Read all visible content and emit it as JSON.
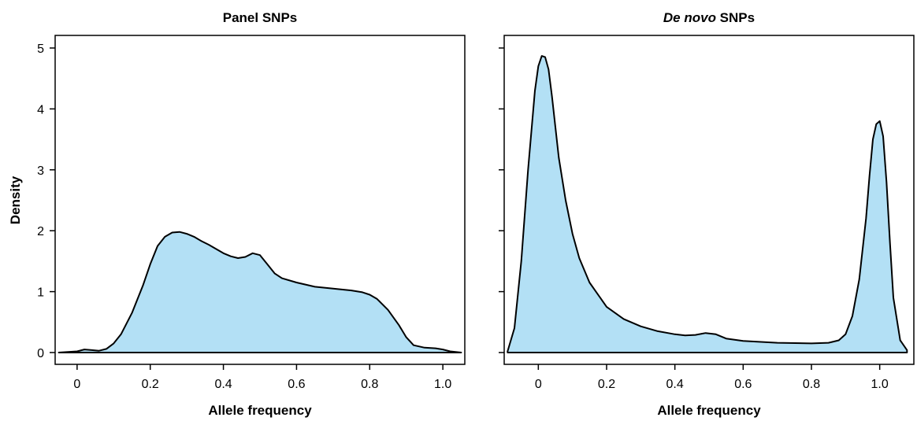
{
  "colors": {
    "fill": "#b3e0f5",
    "stroke": "#000000"
  },
  "chart_data": [
    {
      "type": "area",
      "title": "Panel SNPs",
      "xlabel": "Allele frequency",
      "ylabel": "Density",
      "xlim": [
        -0.06,
        1.06
      ],
      "ylim": [
        0,
        5.2
      ],
      "xticks": [
        0,
        0.2,
        0.4,
        0.6,
        0.8,
        1.0
      ],
      "xtick_labels": [
        "0",
        "0.2",
        "0.4",
        "0.6",
        "0.8",
        "1.0"
      ],
      "yticks": [
        0,
        1,
        2,
        3,
        4,
        5
      ],
      "ytick_labels": [
        "0",
        "1",
        "2",
        "3",
        "4",
        "5"
      ],
      "show_ytick_labels": true,
      "grid": false,
      "series": [
        {
          "x": [
            -0.05,
            0.0,
            0.02,
            0.04,
            0.06,
            0.08,
            0.1,
            0.12,
            0.15,
            0.18,
            0.2,
            0.22,
            0.24,
            0.26,
            0.28,
            0.3,
            0.32,
            0.34,
            0.36,
            0.38,
            0.4,
            0.42,
            0.44,
            0.46,
            0.48,
            0.5,
            0.52,
            0.54,
            0.56,
            0.6,
            0.65,
            0.7,
            0.75,
            0.78,
            0.8,
            0.82,
            0.85,
            0.88,
            0.9,
            0.92,
            0.95,
            0.98,
            1.0,
            1.02,
            1.05
          ],
          "y": [
            0.0,
            0.02,
            0.05,
            0.04,
            0.03,
            0.06,
            0.15,
            0.3,
            0.65,
            1.1,
            1.45,
            1.75,
            1.9,
            1.97,
            1.98,
            1.95,
            1.9,
            1.83,
            1.77,
            1.7,
            1.63,
            1.58,
            1.55,
            1.57,
            1.63,
            1.6,
            1.45,
            1.3,
            1.22,
            1.15,
            1.08,
            1.05,
            1.02,
            0.99,
            0.95,
            0.88,
            0.7,
            0.45,
            0.25,
            0.12,
            0.08,
            0.07,
            0.05,
            0.02,
            0.0
          ]
        }
      ]
    },
    {
      "type": "area",
      "title": "De novo SNPs",
      "title_italic": "De novo",
      "title_rest": " SNPs",
      "xlabel": "Allele frequency",
      "ylabel": "",
      "xlim": [
        -0.1,
        1.1
      ],
      "ylim": [
        0,
        5.2
      ],
      "xticks": [
        0,
        0.2,
        0.4,
        0.6,
        0.8,
        1.0
      ],
      "xtick_labels": [
        "0",
        "0.2",
        "0.4",
        "0.6",
        "0.8",
        "1.0"
      ],
      "yticks": [
        0,
        1,
        2,
        3,
        4,
        5
      ],
      "ytick_labels": [
        "0",
        "1",
        "2",
        "3",
        "4",
        "5"
      ],
      "show_ytick_labels": false,
      "grid": false,
      "series": [
        {
          "x": [
            -0.09,
            -0.07,
            -0.05,
            -0.03,
            -0.01,
            0.0,
            0.01,
            0.02,
            0.03,
            0.04,
            0.05,
            0.06,
            0.08,
            0.1,
            0.12,
            0.15,
            0.2,
            0.25,
            0.3,
            0.35,
            0.4,
            0.43,
            0.46,
            0.49,
            0.52,
            0.55,
            0.6,
            0.7,
            0.8,
            0.85,
            0.88,
            0.9,
            0.92,
            0.94,
            0.96,
            0.97,
            0.98,
            0.99,
            1.0,
            1.01,
            1.02,
            1.03,
            1.04,
            1.06,
            1.08
          ],
          "y": [
            0.02,
            0.4,
            1.5,
            3.0,
            4.3,
            4.7,
            4.87,
            4.85,
            4.65,
            4.2,
            3.7,
            3.2,
            2.5,
            1.95,
            1.55,
            1.15,
            0.75,
            0.55,
            0.43,
            0.35,
            0.3,
            0.28,
            0.29,
            0.32,
            0.3,
            0.23,
            0.19,
            0.16,
            0.15,
            0.16,
            0.2,
            0.3,
            0.6,
            1.2,
            2.2,
            2.9,
            3.5,
            3.75,
            3.8,
            3.55,
            2.8,
            1.8,
            0.9,
            0.2,
            0.04
          ]
        }
      ]
    }
  ]
}
